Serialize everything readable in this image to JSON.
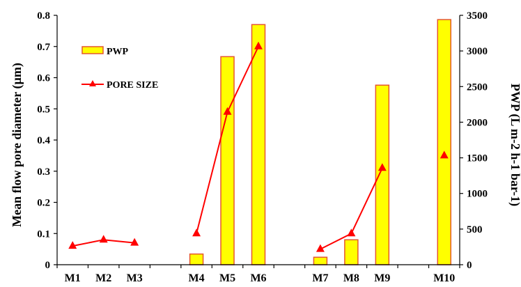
{
  "chart_data": {
    "type": "bar",
    "categories": [
      "M1",
      "M2",
      "M3",
      "",
      "M4",
      "M5",
      "M6",
      "",
      "M7",
      "M8",
      "M9",
      "",
      "M10"
    ],
    "series": [
      {
        "name": "PWP",
        "type": "bar",
        "axis": "right",
        "values": [
          null,
          null,
          null,
          null,
          150,
          2920,
          3370,
          null,
          105,
          350,
          2520,
          null,
          3440
        ]
      },
      {
        "name": "PORE SIZE",
        "type": "line",
        "axis": "left",
        "values": [
          0.06,
          0.08,
          0.07,
          null,
          0.1,
          0.49,
          0.7,
          null,
          0.05,
          0.1,
          0.31,
          null,
          0.35
        ]
      }
    ],
    "ylabel": "Mean flow pore diameter (µm)",
    "y2label": "PWP (L m-2 h-1 bar-1)",
    "ylim": [
      0,
      0.8
    ],
    "y2lim": [
      0,
      3500
    ],
    "yticks": [
      "0",
      "0.1",
      "0.2",
      "0.3",
      "0.4",
      "0.5",
      "0.6",
      "0.7",
      "0.8"
    ],
    "y2ticks": [
      "0",
      "500",
      "1000",
      "1500",
      "2000",
      "2500",
      "3000",
      "3500"
    ],
    "legend": {
      "placement": "top-left",
      "items": [
        {
          "label": "PWP",
          "marker": "bar"
        },
        {
          "label": "PORE SIZE",
          "marker": "line-triangle"
        }
      ]
    },
    "grid": false,
    "colors": {
      "bar_fill": "#ffff00",
      "bar_stroke": "#e4572e",
      "line": "#ff0000",
      "axis": "#000000"
    }
  }
}
